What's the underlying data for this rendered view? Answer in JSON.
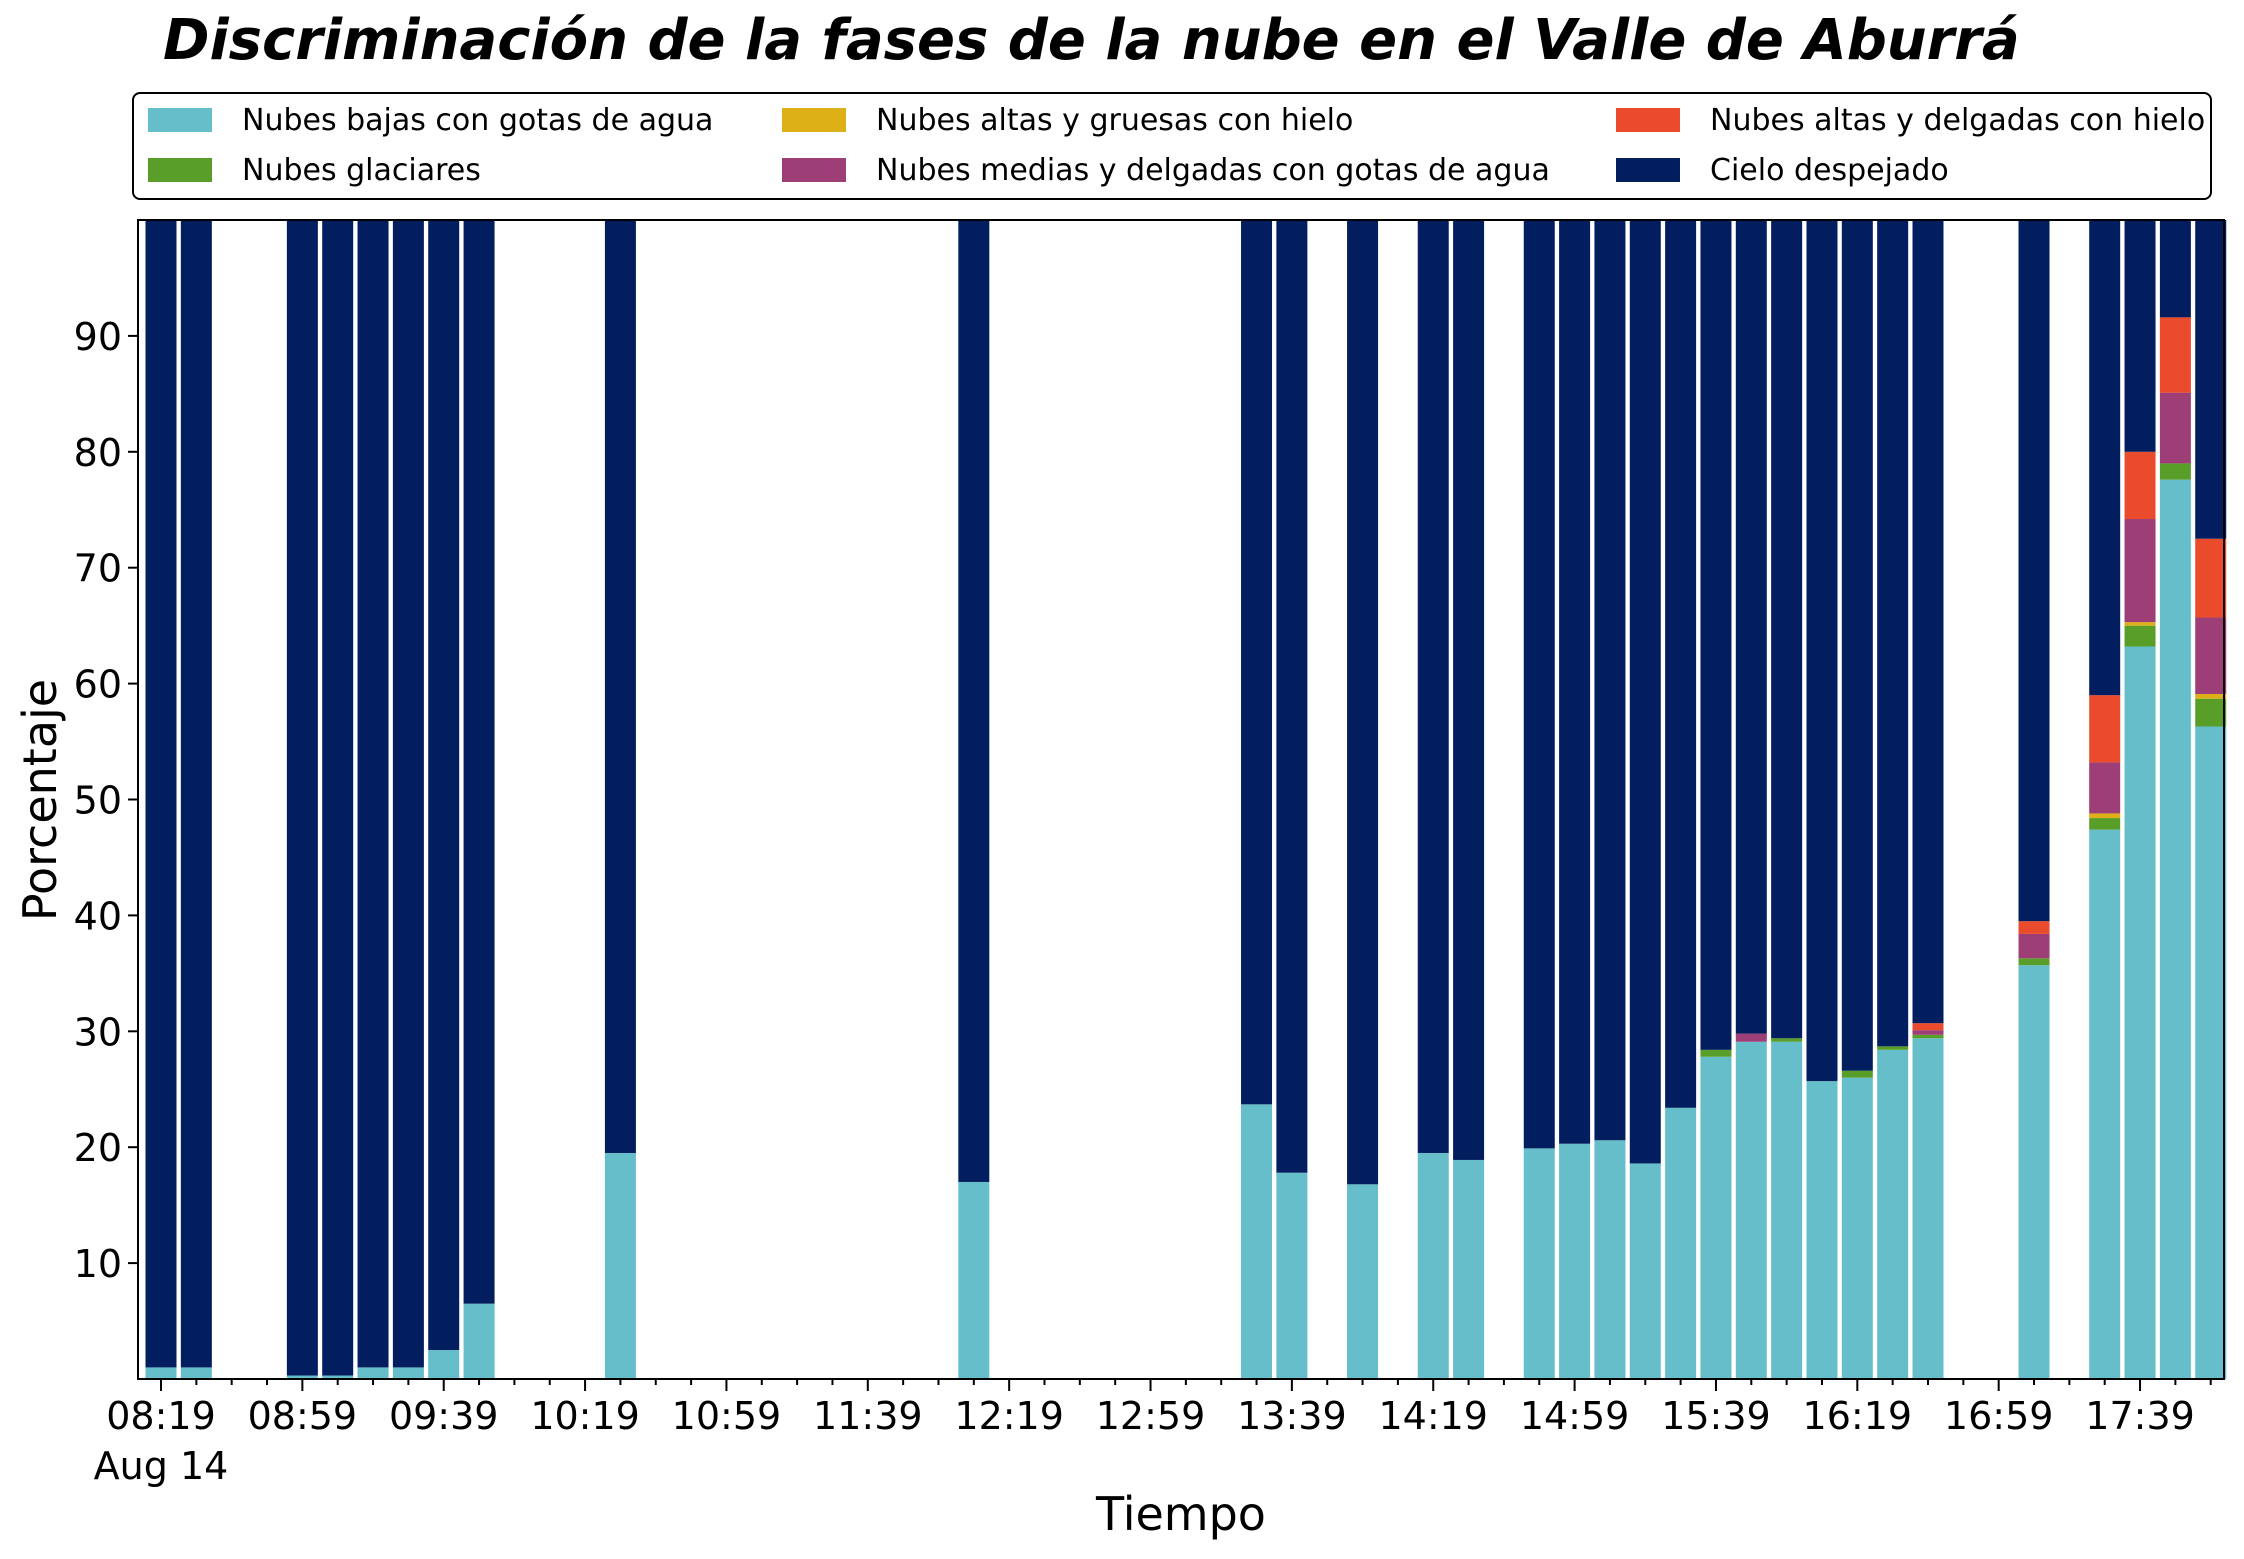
{
  "chart_data": {
    "type": "bar",
    "stacked": true,
    "title": "Discriminación de la fases de la nube en el Valle de Aburrá",
    "xlabel": "Tiempo",
    "ylabel": "Porcentaje",
    "ylim": [
      0,
      100
    ],
    "yticks": [
      10,
      20,
      30,
      40,
      50,
      60,
      70,
      80,
      90
    ],
    "xtick_labels": [
      "08:19",
      "08:59",
      "09:39",
      "10:19",
      "10:59",
      "11:39",
      "12:19",
      "12:59",
      "13:39",
      "14:19",
      "14:59",
      "15:39",
      "16:19",
      "16:59",
      "17:39"
    ],
    "xtick_sublabel": "Aug 14",
    "x_slot_count": 59,
    "legend_placement": "top",
    "grid": false,
    "bars": [
      {
        "slot": 0,
        "values": [
          1.0,
          0,
          0,
          0,
          0
        ]
      },
      {
        "slot": 1,
        "values": [
          1.0,
          0,
          0,
          0,
          0
        ]
      },
      {
        "slot": 4,
        "values": [
          0.3,
          0,
          0,
          0,
          0
        ]
      },
      {
        "slot": 5,
        "values": [
          0.3,
          0,
          0,
          0,
          0
        ]
      },
      {
        "slot": 6,
        "values": [
          1.0,
          0,
          0,
          0,
          0
        ]
      },
      {
        "slot": 7,
        "values": [
          1.0,
          0,
          0,
          0,
          0
        ]
      },
      {
        "slot": 8,
        "values": [
          2.5,
          0,
          0,
          0,
          0
        ]
      },
      {
        "slot": 9,
        "values": [
          6.5,
          0,
          0,
          0,
          0
        ]
      },
      {
        "slot": 13,
        "values": [
          19.5,
          0,
          0,
          0,
          0
        ]
      },
      {
        "slot": 23,
        "values": [
          17.0,
          0,
          0,
          0,
          0
        ]
      },
      {
        "slot": 31,
        "values": [
          23.7,
          0,
          0,
          0,
          0
        ]
      },
      {
        "slot": 32,
        "values": [
          17.8,
          0,
          0,
          0,
          0
        ]
      },
      {
        "slot": 34,
        "values": [
          16.8,
          0,
          0,
          0,
          0
        ]
      },
      {
        "slot": 36,
        "values": [
          19.5,
          0,
          0,
          0,
          0
        ]
      },
      {
        "slot": 37,
        "values": [
          18.9,
          0,
          0,
          0,
          0
        ]
      },
      {
        "slot": 39,
        "values": [
          19.9,
          0,
          0,
          0,
          0
        ]
      },
      {
        "slot": 40,
        "values": [
          20.3,
          0,
          0,
          0,
          0
        ]
      },
      {
        "slot": 41,
        "values": [
          20.6,
          0,
          0,
          0,
          0
        ]
      },
      {
        "slot": 42,
        "values": [
          18.6,
          0,
          0,
          0,
          0
        ]
      },
      {
        "slot": 43,
        "values": [
          23.4,
          0,
          0,
          0,
          0
        ]
      },
      {
        "slot": 44,
        "values": [
          27.8,
          0.6,
          0,
          0,
          0
        ]
      },
      {
        "slot": 45,
        "values": [
          29.1,
          0,
          0,
          0.7,
          0
        ]
      },
      {
        "slot": 46,
        "values": [
          29.1,
          0.3,
          0,
          0,
          0
        ]
      },
      {
        "slot": 47,
        "values": [
          25.7,
          0,
          0,
          0,
          0
        ]
      },
      {
        "slot": 48,
        "values": [
          26.0,
          0.6,
          0,
          0,
          0
        ]
      },
      {
        "slot": 49,
        "values": [
          28.4,
          0.3,
          0,
          0,
          0
        ]
      },
      {
        "slot": 50,
        "values": [
          29.4,
          0.3,
          0,
          0.4,
          0.6
        ]
      },
      {
        "slot": 53,
        "values": [
          35.7,
          0.6,
          0,
          2.1,
          1.1
        ]
      },
      {
        "slot": 55,
        "values": [
          47.4,
          1.0,
          0.4,
          4.4,
          5.8
        ]
      },
      {
        "slot": 56,
        "values": [
          63.2,
          1.8,
          0.3,
          8.9,
          5.8
        ]
      },
      {
        "slot": 57,
        "values": [
          77.6,
          1.4,
          0,
          6.1,
          6.5
        ]
      },
      {
        "slot": 58,
        "values": [
          56.3,
          2.4,
          0.4,
          6.6,
          6.8
        ]
      }
    ],
    "series": [
      {
        "name": "Nubes bajas con gotas de agua",
        "color": "#65bec9"
      },
      {
        "name": "Nubes glaciares",
        "color": "#5a9e2a"
      },
      {
        "name": "Nubes altas y gruesas con hielo",
        "color": "#ddb017"
      },
      {
        "name": "Nubes medias y delgadas con gotas de agua",
        "color": "#9e3e76"
      },
      {
        "name": "Nubes altas y delgadas con hielo",
        "color": "#e94b2c"
      },
      {
        "name": "Cielo despejado",
        "color": "#031e5e"
      }
    ],
    "legend_order": [
      0,
      2,
      4,
      1,
      3,
      5
    ]
  }
}
